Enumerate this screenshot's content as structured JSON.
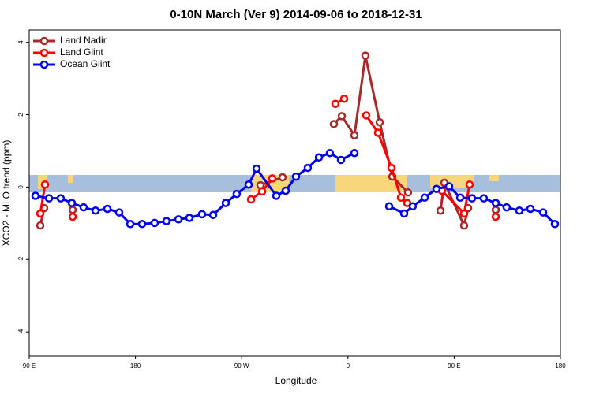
{
  "chart_data": {
    "type": "line",
    "title": "0-10N March (Ver 9)   2014-09-06 to 2018-12-31",
    "x_label": "Longitude",
    "y_label": "XCO2 - MLO trend (ppm)",
    "xlim": [
      90,
      540
    ],
    "xticks": [
      {
        "value": 90,
        "label": "90 E"
      },
      {
        "value": 180,
        "label": "180"
      },
      {
        "value": 270,
        "label": "90 W"
      },
      {
        "value": 360,
        "label": "0"
      },
      {
        "value": 450,
        "label": "90 E"
      },
      {
        "value": 540,
        "label": "180"
      }
    ],
    "ylim": [
      -4.67,
      4.34
    ],
    "yticks": [
      -4,
      -2,
      0,
      2,
      4
    ],
    "legend": "top-left",
    "series": [
      {
        "name": "Land Nadir",
        "color": "#a52a2a",
        "x": [
          99.4,
          102.7,
          null,
          126.8,
          null,
          285.9,
          304.6,
          null,
          348.1,
          354.8,
          365.5,
          374.8,
          386.9,
          397.6,
          410.9,
          null,
          438.4,
          441.7,
          458.4,
          461.8,
          null,
          485.2
        ],
        "values": [
          -1.06,
          -0.58,
          null,
          -0.63,
          null,
          0.05,
          0.27,
          null,
          1.74,
          1.96,
          1.43,
          3.63,
          1.79,
          0.29,
          -0.15,
          null,
          -0.65,
          0.12,
          -1.06,
          -0.58,
          null,
          -0.63
        ]
      },
      {
        "name": "Land Glint",
        "color": "#ff0000",
        "x": [
          99.4,
          103.4,
          null,
          126.8,
          null,
          277.9,
          287.3,
          295.9,
          null,
          349.4,
          356.8,
          null,
          375.5,
          385.5,
          396.9,
          404.9,
          410.2,
          null,
          439.6,
          458.4,
          463.1,
          null,
          485.2
        ],
        "values": [
          -0.73,
          0.07,
          null,
          -0.82,
          null,
          -0.34,
          -0.12,
          0.24,
          null,
          2.3,
          2.44,
          null,
          1.98,
          1.5,
          0.53,
          -0.29,
          -0.44,
          null,
          -0.1,
          -0.73,
          0.07,
          null,
          -0.82
        ]
      },
      {
        "name": "Ocean Glint",
        "color": "#0000ee",
        "x": [
          95.3,
          106.7,
          116.7,
          126.1,
          136.1,
          146.2,
          156.2,
          166.2,
          175.6,
          185.6,
          196.3,
          206.3,
          216.4,
          225.7,
          236.4,
          245.8,
          256.5,
          265.8,
          275.9,
          282.6,
          299.3,
          307.3,
          316,
          326,
          335.4,
          344.7,
          354.1,
          365.5,
          null,
          394.9,
          407.6,
          414.9,
          425,
          435,
          445.7,
          455.1,
          465.1,
          475.1,
          485.2,
          494.5,
          505.2,
          514.6,
          525.3,
          535.3
        ],
        "values": [
          -0.24,
          -0.31,
          -0.31,
          -0.44,
          -0.56,
          -0.65,
          -0.6,
          -0.7,
          -1.02,
          -1.02,
          -0.99,
          -0.94,
          -0.89,
          -0.85,
          -0.75,
          -0.77,
          -0.44,
          -0.19,
          0.07,
          0.51,
          -0.24,
          -0.1,
          0.29,
          0.53,
          0.82,
          0.94,
          0.75,
          0.94,
          null,
          -0.53,
          -0.73,
          -0.53,
          -0.29,
          -0.05,
          0.02,
          -0.29,
          -0.31,
          -0.31,
          -0.44,
          -0.56,
          -0.65,
          -0.6,
          -0.7,
          -1.02
        ]
      }
    ]
  }
}
